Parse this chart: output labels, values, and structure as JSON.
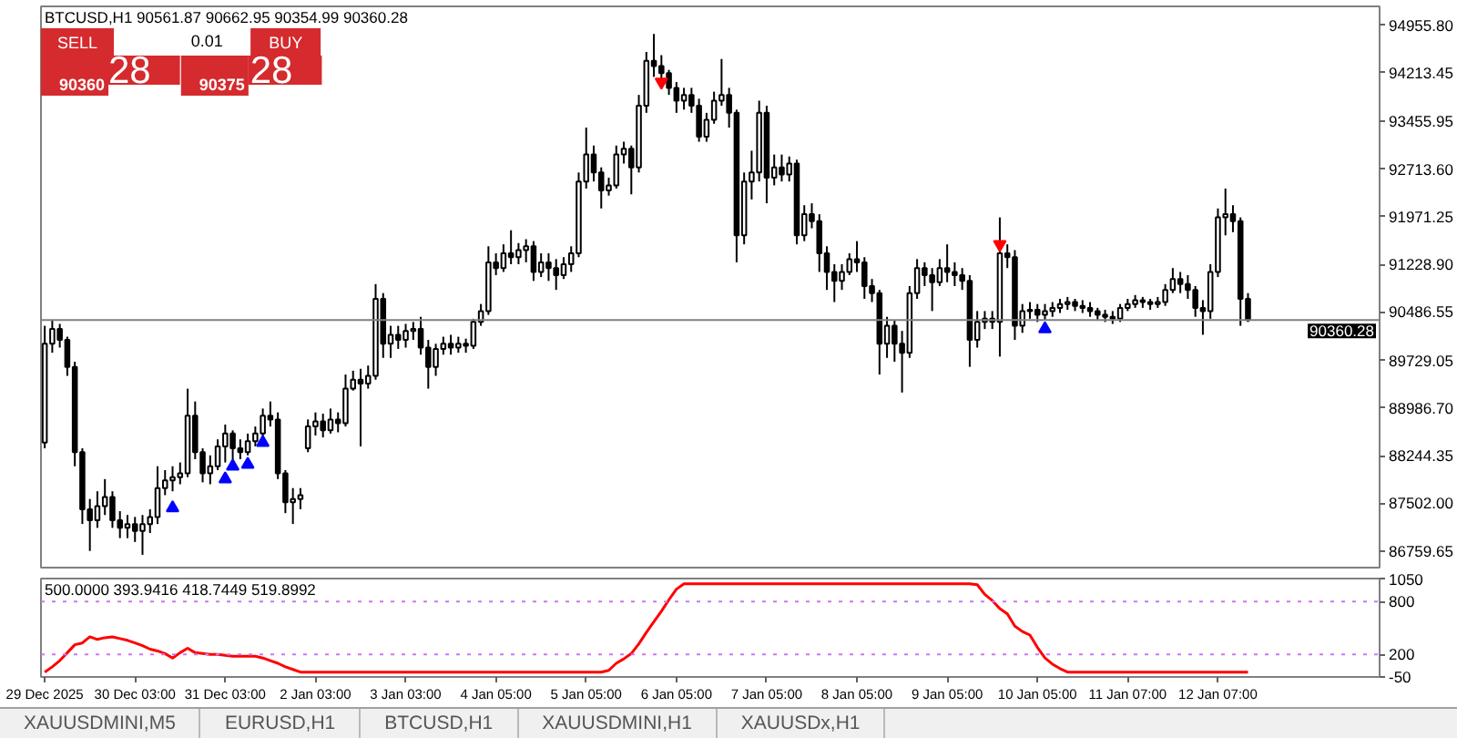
{
  "chart_data": [
    {
      "type": "candlestick",
      "title": "BTCUSD,H1  90561.87 90662.95 90354.99 90360.28",
      "annotations": [
        "SELL",
        "0.01",
        "BUY",
        "90360",
        "28",
        "90375",
        "28"
      ],
      "categories": [
        null,
        null,
        null,
        null,
        null,
        null,
        null,
        null,
        null,
        null,
        null,
        null,
        null,
        null,
        null,
        null,
        null,
        null,
        null,
        null,
        null,
        null,
        null,
        null,
        null,
        null,
        null,
        null,
        null,
        null,
        null,
        null,
        null,
        null,
        null,
        null,
        null,
        null,
        null,
        null,
        null,
        null,
        null,
        null,
        null,
        null,
        null,
        null,
        null,
        null,
        null,
        null,
        null,
        null,
        null,
        null,
        null,
        null,
        null,
        null,
        null,
        null,
        null,
        null,
        null,
        null,
        null,
        null,
        null,
        null,
        null,
        null,
        null,
        null,
        null,
        null,
        null,
        null,
        null,
        null,
        null,
        null,
        null,
        null,
        null,
        null,
        null,
        null,
        null,
        null,
        null,
        null,
        null,
        null,
        null,
        null,
        null,
        null,
        null,
        null,
        null,
        null,
        null,
        null,
        null,
        null,
        null,
        null,
        null,
        null,
        null,
        null,
        null,
        null,
        null,
        null,
        null,
        null,
        null,
        null,
        null,
        null,
        null,
        null,
        null,
        null,
        null,
        null,
        null,
        null,
        null,
        null,
        null,
        null,
        null,
        null,
        null,
        null,
        null,
        null,
        null,
        null,
        null,
        null,
        null,
        null,
        null,
        null,
        null,
        null,
        null,
        null,
        null,
        null,
        null,
        null,
        null,
        null,
        null,
        null,
        null,
        null,
        null,
        null,
        null,
        null,
        null,
        null,
        null,
        null,
        null,
        null,
        null,
        null,
        null,
        null,
        null,
        null
      ],
      "ohlc": [
        [
          88450,
          90270,
          88360,
          89990
        ],
        [
          89990,
          90360,
          89850,
          90220
        ],
        [
          90220,
          90300,
          89930,
          90050
        ],
        [
          90050,
          90100,
          89490,
          89630
        ],
        [
          89630,
          89710,
          88080,
          88300
        ],
        [
          88300,
          88360,
          87180,
          87410
        ],
        [
          87410,
          87570,
          86760,
          87240
        ],
        [
          87240,
          87690,
          87120,
          87460
        ],
        [
          87460,
          87880,
          87320,
          87600
        ],
        [
          87600,
          87690,
          87120,
          87240
        ],
        [
          87240,
          87380,
          86960,
          87120
        ],
        [
          87120,
          87320,
          86960,
          87180
        ],
        [
          87180,
          87290,
          86900,
          87070
        ],
        [
          87070,
          87320,
          86700,
          87180
        ],
        [
          87180,
          87410,
          87040,
          87290
        ],
        [
          87290,
          88080,
          87180,
          87740
        ],
        [
          87740,
          88020,
          87630,
          87860
        ],
        [
          87860,
          88080,
          87690,
          87910
        ],
        [
          87910,
          88140,
          87800,
          87970
        ],
        [
          87970,
          89290,
          87910,
          88870
        ],
        [
          88870,
          89090,
          88190,
          88300
        ],
        [
          88300,
          88360,
          87830,
          87970
        ],
        [
          87970,
          88250,
          87800,
          88080
        ],
        [
          88080,
          88500,
          88020,
          88390
        ],
        [
          88390,
          88730,
          88140,
          88590
        ],
        [
          88590,
          88640,
          88190,
          88360
        ],
        [
          88360,
          88500,
          88190,
          88300
        ],
        [
          88300,
          88590,
          88250,
          88470
        ],
        [
          88470,
          88700,
          88390,
          88590
        ],
        [
          88590,
          88980,
          88500,
          88870
        ],
        [
          88870,
          89090,
          88700,
          88810
        ],
        [
          88810,
          88920,
          87880,
          87970
        ],
        [
          87970,
          88020,
          87350,
          87520
        ],
        [
          87520,
          87740,
          87180,
          87570
        ],
        [
          87570,
          87740,
          87410,
          87630
        ],
        [
          88360,
          88810,
          88300,
          88700
        ],
        [
          88700,
          88920,
          88560,
          88780
        ],
        [
          88780,
          88900,
          88530,
          88640
        ],
        [
          88640,
          88980,
          88590,
          88810
        ],
        [
          88810,
          88920,
          88610,
          88750
        ],
        [
          88750,
          89510,
          88700,
          89290
        ],
        [
          89290,
          89570,
          89260,
          89430
        ],
        [
          89430,
          89600,
          88390,
          89370
        ],
        [
          89370,
          89650,
          89290,
          89490
        ],
        [
          89490,
          90920,
          89430,
          90690
        ],
        [
          90690,
          90780,
          89770,
          89990
        ],
        [
          89990,
          90270,
          89770,
          90130
        ],
        [
          90130,
          90270,
          89910,
          90050
        ],
        [
          90050,
          90300,
          89930,
          90190
        ],
        [
          90190,
          90330,
          90050,
          90220
        ],
        [
          90220,
          90410,
          89820,
          89930
        ],
        [
          89930,
          90050,
          89290,
          89630
        ],
        [
          89630,
          89990,
          89490,
          89910
        ],
        [
          89910,
          90100,
          89820,
          89990
        ],
        [
          89990,
          90130,
          89820,
          89930
        ],
        [
          89930,
          90100,
          89850,
          89990
        ],
        [
          89990,
          90070,
          89850,
          89960
        ],
        [
          89960,
          90380,
          89910,
          90330
        ],
        [
          90330,
          90610,
          90270,
          90500
        ],
        [
          90500,
          91510,
          90440,
          91260
        ],
        [
          91260,
          91400,
          91060,
          91170
        ],
        [
          91170,
          91540,
          91110,
          91400
        ],
        [
          91400,
          91760,
          91230,
          91340
        ],
        [
          91340,
          91560,
          91230,
          91450
        ],
        [
          91450,
          91620,
          91260,
          91510
        ],
        [
          91510,
          91590,
          90970,
          91110
        ],
        [
          91110,
          91400,
          91030,
          91260
        ],
        [
          91260,
          91400,
          90970,
          91170
        ],
        [
          91170,
          91310,
          90830,
          91060
        ],
        [
          91060,
          91340,
          91000,
          91230
        ],
        [
          91230,
          91510,
          91110,
          91400
        ],
        [
          91400,
          92660,
          91340,
          92520
        ],
        [
          92520,
          93360,
          92410,
          92940
        ],
        [
          92940,
          93080,
          92520,
          92660
        ],
        [
          92660,
          92740,
          92100,
          92380
        ],
        [
          92380,
          92580,
          92300,
          92460
        ],
        [
          92460,
          93080,
          92410,
          92940
        ],
        [
          92940,
          93140,
          92800,
          93030
        ],
        [
          93030,
          93080,
          92320,
          92740
        ],
        [
          92740,
          93870,
          92660,
          93700
        ],
        [
          93700,
          94540,
          93590,
          94400
        ],
        [
          94400,
          94820,
          94150,
          94320
        ],
        [
          94320,
          94490,
          94070,
          94210
        ],
        [
          94210,
          94260,
          93870,
          93980
        ],
        [
          93980,
          94070,
          93590,
          93780
        ],
        [
          93780,
          93980,
          93640,
          93870
        ],
        [
          93870,
          93980,
          93590,
          93700
        ],
        [
          93700,
          93810,
          93140,
          93220
        ],
        [
          93220,
          93590,
          93140,
          93480
        ],
        [
          93480,
          93920,
          93420,
          93780
        ],
        [
          93780,
          94430,
          93700,
          93870
        ],
        [
          93870,
          93980,
          93360,
          93590
        ],
        [
          93590,
          93640,
          91260,
          91680
        ],
        [
          91680,
          92660,
          91540,
          92520
        ],
        [
          92520,
          93000,
          92240,
          92660
        ],
        [
          92660,
          93780,
          92520,
          93590
        ],
        [
          93590,
          93700,
          92180,
          92580
        ],
        [
          92580,
          92940,
          92460,
          92740
        ],
        [
          92740,
          92940,
          92520,
          92630
        ],
        [
          92630,
          92910,
          92520,
          92800
        ],
        [
          92800,
          92860,
          91540,
          91680
        ],
        [
          91680,
          92150,
          91590,
          92010
        ],
        [
          92010,
          92180,
          91790,
          91900
        ],
        [
          91900,
          92010,
          91110,
          91400
        ],
        [
          91400,
          91510,
          90830,
          91110
        ],
        [
          91110,
          91230,
          90640,
          90970
        ],
        [
          90970,
          91230,
          90830,
          91110
        ],
        [
          91110,
          91400,
          91060,
          91310
        ],
        [
          91310,
          91590,
          91110,
          91260
        ],
        [
          91260,
          91340,
          90690,
          90890
        ],
        [
          90890,
          91000,
          90640,
          90780
        ],
        [
          90780,
          90830,
          89510,
          89990
        ],
        [
          89990,
          90410,
          89770,
          90270
        ],
        [
          90270,
          90360,
          89710,
          89990
        ],
        [
          89990,
          90190,
          89230,
          89850
        ],
        [
          89850,
          90890,
          89770,
          90780
        ],
        [
          90780,
          91310,
          90690,
          91170
        ],
        [
          91170,
          91260,
          90890,
          91060
        ],
        [
          91060,
          91170,
          90500,
          90950
        ],
        [
          90950,
          91310,
          90890,
          91170
        ],
        [
          91170,
          91540,
          90950,
          91110
        ],
        [
          91110,
          91260,
          90890,
          91060
        ],
        [
          91060,
          91170,
          90830,
          90970
        ],
        [
          90970,
          91060,
          89630,
          90050
        ],
        [
          90050,
          90500,
          89930,
          90330
        ],
        [
          90330,
          90500,
          90220,
          90380
        ],
        [
          90380,
          90500,
          90220,
          90330
        ],
        [
          90330,
          91960,
          89790,
          91400
        ],
        [
          91400,
          91540,
          91170,
          91340
        ],
        [
          91340,
          91450,
          90050,
          90270
        ],
        [
          90270,
          90610,
          90160,
          90500
        ],
        [
          90500,
          90640,
          90380,
          90520
        ],
        [
          90520,
          90610,
          90330,
          90440
        ],
        [
          90440,
          90610,
          90360,
          90500
        ],
        [
          90500,
          90640,
          90410,
          90550
        ],
        [
          90550,
          90690,
          90470,
          90610
        ],
        [
          90610,
          90720,
          90520,
          90640
        ],
        [
          90640,
          90690,
          90500,
          90580
        ],
        [
          90580,
          90670,
          90470,
          90550
        ],
        [
          90550,
          90640,
          90410,
          90500
        ],
        [
          90500,
          90550,
          90360,
          90440
        ],
        [
          90440,
          90520,
          90330,
          90410
        ],
        [
          90410,
          90500,
          90300,
          90380
        ],
        [
          90380,
          90610,
          90330,
          90550
        ],
        [
          90550,
          90690,
          90500,
          90610
        ],
        [
          90610,
          90750,
          90550,
          90670
        ],
        [
          90670,
          90720,
          90550,
          90640
        ],
        [
          90640,
          90690,
          90520,
          90610
        ],
        [
          90610,
          90720,
          90550,
          90640
        ],
        [
          90640,
          90920,
          90580,
          90830
        ],
        [
          90830,
          91170,
          90780,
          91000
        ],
        [
          91000,
          91110,
          90780,
          90920
        ],
        [
          90920,
          91060,
          90690,
          90830
        ],
        [
          90830,
          90890,
          90410,
          90550
        ],
        [
          90550,
          90670,
          90130,
          90500
        ],
        [
          90500,
          91230,
          90380,
          91110
        ],
        [
          91110,
          92100,
          91030,
          91960
        ],
        [
          91960,
          92410,
          91680,
          92010
        ],
        [
          92010,
          92150,
          91730,
          91900
        ],
        [
          91900,
          91960,
          90270,
          90690
        ],
        [
          90690,
          90780,
          90330,
          90360.28
        ],
        null,
        null,
        null,
        null,
        null,
        null,
        null,
        null,
        null,
        null,
        null,
        null,
        null,
        null,
        null,
        null,
        null
      ],
      "color": "#000000",
      "series": [
        {
          "type": "scatter",
          "color": "#0000ff",
          "marker": "triangle",
          "values": [
            null,
            null,
            null,
            null,
            null,
            null,
            null,
            null,
            null,
            null,
            null,
            null,
            null,
            null,
            null,
            null,
            null,
            87430,
            null,
            null,
            null,
            null,
            null,
            null,
            87880,
            88080,
            null,
            88110,
            null,
            88450,
            null,
            null,
            null,
            null,
            null,
            null,
            null,
            null,
            null,
            null,
            null,
            null,
            null,
            null,
            null,
            null,
            null,
            null,
            null,
            null,
            null,
            null,
            null,
            null,
            null,
            null,
            null,
            null,
            null,
            null,
            null,
            null,
            null,
            null,
            null,
            null,
            null,
            null,
            null,
            null,
            null,
            null,
            null,
            null,
            null,
            null,
            null,
            null,
            null,
            null,
            null,
            null,
            null,
            null,
            null,
            null,
            null,
            null,
            null,
            null,
            null,
            null,
            null,
            null,
            null,
            null,
            null,
            null,
            null,
            null,
            null,
            null,
            null,
            null,
            null,
            null,
            null,
            null,
            null,
            null,
            null,
            null,
            null,
            null,
            null,
            null,
            null,
            null,
            null,
            null,
            null,
            null,
            null,
            null,
            null,
            null,
            null,
            null,
            null,
            null,
            null,
            null,
            null,
            90220,
            null,
            null,
            null,
            null,
            null,
            null,
            null,
            null,
            null,
            null,
            null,
            null,
            null,
            null,
            null,
            null,
            null,
            null,
            null,
            null,
            null,
            null,
            null,
            null,
            null,
            null,
            null,
            null,
            null,
            null,
            null,
            null,
            null,
            null,
            null,
            null,
            null,
            null,
            null,
            null,
            null,
            null,
            null,
            null
          ]
        },
        {
          "type": "scatter",
          "color": "#ff0000",
          "values": [
            null,
            null,
            null,
            null,
            null,
            null,
            null,
            null,
            null,
            null,
            null,
            null,
            null,
            null,
            null,
            null,
            null,
            null,
            null,
            null,
            null,
            null,
            null,
            null,
            null,
            null,
            null,
            null,
            null,
            null,
            null,
            null,
            null,
            null,
            null,
            null,
            null,
            null,
            null,
            null,
            null,
            null,
            null,
            null,
            null,
            null,
            null,
            null,
            null,
            null,
            null,
            null,
            null,
            null,
            null,
            null,
            null,
            null,
            null,
            null,
            null,
            null,
            null,
            null,
            null,
            null,
            null,
            null,
            null,
            null,
            null,
            null,
            null,
            null,
            null,
            null,
            null,
            null,
            null,
            null,
            null,
            null,
            94070,
            null,
            null,
            null,
            null,
            null,
            null,
            null,
            null,
            null,
            null,
            null,
            null,
            null,
            null,
            null,
            null,
            null,
            null,
            null,
            null,
            null,
            null,
            null,
            null,
            null,
            null,
            null,
            null,
            null,
            null,
            null,
            null,
            null,
            null,
            null,
            null,
            null,
            null,
            null,
            null,
            null,
            null,
            null,
            null,
            91540,
            null,
            null,
            null,
            null,
            null,
            null,
            null,
            null,
            null,
            null,
            null,
            null,
            null,
            null,
            null,
            null,
            null,
            null,
            null,
            null,
            null,
            null,
            null,
            null,
            null,
            null,
            null,
            null,
            null,
            null,
            null,
            null,
            null,
            null,
            null,
            null,
            null,
            null,
            null,
            null,
            null,
            null,
            null,
            null,
            null,
            null,
            null,
            null,
            null,
            null
          ]
        }
      ],
      "ylim": [
        86500,
        95250
      ],
      "yticks": [
        {
          "value": 94955.8,
          "label": "94955.80"
        },
        {
          "value": 94213.45,
          "label": "94213.45"
        },
        {
          "value": 93455.95,
          "label": "93455.95"
        },
        {
          "value": 92713.6,
          "label": "92713.60"
        },
        {
          "value": 91971.25,
          "label": "91971.25"
        },
        {
          "value": 91228.9,
          "label": "91228.90"
        },
        {
          "value": 90486.55,
          "label": "90486.55"
        },
        {
          "value": 89729.05,
          "label": "89729.05"
        },
        {
          "value": 88986.7,
          "label": "88986.70"
        },
        {
          "value": 88244.35,
          "label": "88244.35"
        },
        {
          "value": 87502.0,
          "label": "87502.00"
        },
        {
          "value": 86759.65,
          "label": "86759.65"
        }
      ],
      "tick_labels": "y",
      "ref_lines": [
        {
          "axis": "y",
          "value": 90360.28,
          "label": "90360.28",
          "color": "#808080"
        }
      ]
    },
    {
      "type": "line",
      "title": "500.0000 393.9416 418.7449 519.8992",
      "categories": [
        "29 Dec 2025",
        null,
        null,
        null,
        null,
        null,
        null,
        null,
        null,
        null,
        null,
        null,
        "30 Dec 03:00",
        null,
        null,
        null,
        null,
        null,
        null,
        null,
        null,
        null,
        null,
        null,
        "31 Dec 03:00",
        null,
        null,
        null,
        null,
        null,
        null,
        null,
        null,
        null,
        null,
        null,
        "2 Jan 03:00",
        null,
        null,
        null,
        null,
        null,
        null,
        null,
        null,
        null,
        null,
        null,
        "3 Jan 03:00",
        null,
        null,
        null,
        null,
        null,
        null,
        null,
        null,
        null,
        null,
        null,
        "4 Jan 05:00",
        null,
        null,
        null,
        null,
        null,
        null,
        null,
        null,
        null,
        null,
        null,
        "5 Jan 05:00",
        null,
        null,
        null,
        null,
        null,
        null,
        null,
        null,
        null,
        null,
        null,
        "6 Jan 05:00",
        null,
        null,
        null,
        null,
        null,
        null,
        null,
        null,
        null,
        null,
        null,
        "7 Jan 05:00",
        null,
        null,
        null,
        null,
        null,
        null,
        null,
        null,
        null,
        null,
        null,
        "8 Jan 05:00",
        null,
        null,
        null,
        null,
        null,
        null,
        null,
        null,
        null,
        null,
        null,
        "9 Jan 05:00",
        null,
        null,
        null,
        null,
        null,
        null,
        null,
        null,
        null,
        null,
        null,
        "10 Jan 05:00",
        null,
        null,
        null,
        null,
        null,
        null,
        null,
        null,
        null,
        null,
        null,
        "11 Jan 07:00",
        null,
        null,
        null,
        null,
        null,
        null,
        null,
        null,
        null,
        null,
        null,
        "12 Jan 07:00",
        null,
        null,
        null,
        null,
        null,
        null,
        null,
        null,
        null,
        null,
        null,
        null,
        null,
        null,
        null,
        null,
        null,
        null,
        null,
        null,
        null
      ],
      "series": [
        {
          "color": "#ff0000",
          "values": [
            0,
            60,
            130,
            220,
            310,
            330,
            400,
            370,
            390,
            400,
            380,
            360,
            330,
            300,
            260,
            240,
            210,
            160,
            220,
            270,
            220,
            210,
            200,
            200,
            190,
            180,
            180,
            180,
            180,
            160,
            130,
            100,
            60,
            30,
            0,
            0,
            0,
            0,
            0,
            0,
            0,
            0,
            0,
            0,
            0,
            0,
            0,
            0,
            0,
            0,
            0,
            0,
            0,
            0,
            0,
            0,
            0,
            0,
            0,
            0,
            0,
            0,
            0,
            0,
            0,
            0,
            0,
            0,
            0,
            0,
            0,
            0,
            0,
            0,
            0,
            20,
            100,
            150,
            210,
            320,
            450,
            570,
            690,
            820,
            940,
            1000,
            1000,
            1000,
            1000,
            1000,
            1000,
            1000,
            1000,
            1000,
            1000,
            1000,
            1000,
            1000,
            1000,
            1000,
            1000,
            1000,
            1000,
            1000,
            1000,
            1000,
            1000,
            1000,
            1000,
            1000,
            1000,
            1000,
            1000,
            1000,
            1000,
            1000,
            1000,
            1000,
            1000,
            1000,
            1000,
            1000,
            1000,
            1000,
            990,
            880,
            810,
            720,
            660,
            520,
            460,
            420,
            280,
            160,
            90,
            40,
            0,
            0,
            0,
            0,
            0,
            0,
            0,
            0,
            0,
            0,
            0,
            0,
            0,
            0,
            0,
            0,
            0,
            0,
            0,
            0,
            0,
            0,
            0,
            0,
            0,
            null,
            null,
            null,
            null,
            null,
            null,
            null,
            null,
            null,
            null,
            null,
            null,
            null,
            null,
            null,
            null,
            null
          ]
        }
      ],
      "ylim": [
        -55,
        1060
      ],
      "yticks": [
        1050,
        800,
        200,
        -50
      ],
      "ref_lines": [
        {
          "axis": "y",
          "value": 800,
          "color": "#cc77ee",
          "line_style": "dotted"
        },
        {
          "axis": "y",
          "value": 200,
          "color": "#cc77ee",
          "line_style": "dotted"
        }
      ]
    },
    {
      "type": "other",
      "annotations": [
        "XAUUSDMINI,M5",
        "EURUSD,H1",
        "BTCUSD,H1",
        "XAUUSDMINI,H1",
        "XAUUSDx,H1"
      ]
    }
  ]
}
